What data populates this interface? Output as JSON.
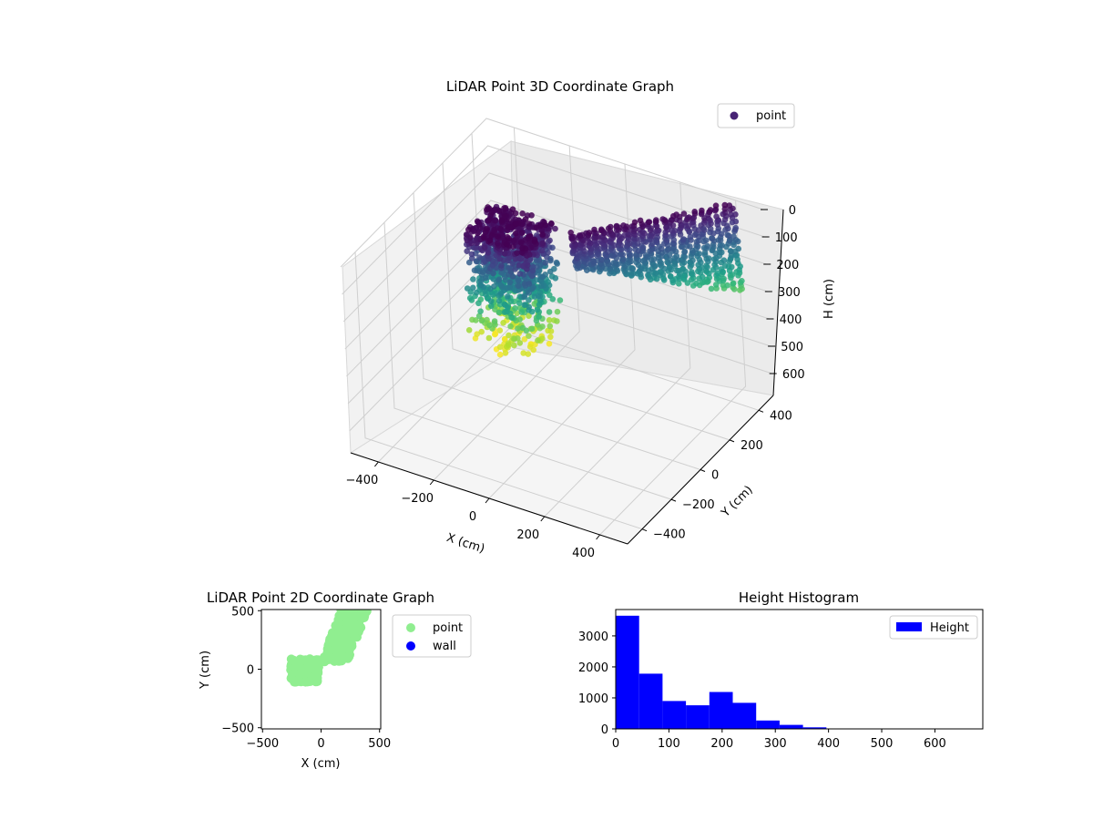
{
  "chart_data": [
    {
      "type": "scatter",
      "projection": "3d",
      "title": "LiDAR Point 3D Coordinate Graph",
      "xlabel": "X (cm)",
      "ylabel": "Y (cm)",
      "zlabel": "H (cm)",
      "xticks": [
        -400,
        -200,
        0,
        200,
        400
      ],
      "yticks": [
        -400,
        -200,
        0,
        200,
        400
      ],
      "zticks": [
        0,
        100,
        200,
        300,
        400,
        500,
        600
      ],
      "xlim": [
        -500,
        500
      ],
      "ylim": [
        -500,
        500
      ],
      "zlim": [
        0,
        680
      ],
      "z_axis_inverted": true,
      "colormap": "viridis",
      "grid": true,
      "legend": {
        "location": "upper-right",
        "entries": [
          {
            "name": "point",
            "color": "#482475"
          }
        ]
      },
      "series": [
        {
          "name": "point",
          "description_clusters": [
            {
              "x_range": [
                -260,
                -30
              ],
              "y_range": [
                -120,
                90
              ],
              "h_range": [
                0,
                420
              ]
            },
            {
              "x_range": [
                0,
                420
              ],
              "y_range": [
                60,
                500
              ],
              "h_range": [
                0,
                330
              ]
            }
          ]
        }
      ]
    },
    {
      "type": "scatter",
      "title": "LiDAR Point 2D Coordinate Graph",
      "xlabel": "X (cm)",
      "ylabel": "Y (cm)",
      "xticks": [
        -500,
        0,
        500
      ],
      "yticks": [
        -500,
        0,
        500
      ],
      "xlim": [
        -510,
        510
      ],
      "ylim": [
        -510,
        510
      ],
      "legend": {
        "location": "outside-right",
        "entries": [
          {
            "name": "point",
            "color": "#90ee90"
          },
          {
            "name": "wall",
            "color": "#0000ff"
          }
        ]
      },
      "series": [
        {
          "name": "point",
          "color": "#90ee90",
          "regions": [
            {
              "x_range": [
                -260,
                -20
              ],
              "y_range": [
                -110,
                90
              ]
            },
            {
              "x_range": [
                0,
                410
              ],
              "y_range": [
                60,
                510
              ]
            }
          ]
        },
        {
          "name": "wall",
          "color": "#0000ff",
          "points": []
        }
      ]
    },
    {
      "type": "bar",
      "title": "Height Histogram",
      "xticks": [
        0,
        100,
        200,
        300,
        400,
        500,
        600
      ],
      "yticks": [
        0,
        1000,
        2000,
        3000
      ],
      "xlim": [
        0,
        690
      ],
      "ylim": [
        0,
        3850
      ],
      "color": "#0000ff",
      "legend": {
        "location": "top-right",
        "entries": [
          {
            "name": "Height",
            "color": "#0000ff"
          }
        ]
      },
      "bin_edges": [
        0,
        44,
        88,
        132,
        176,
        220,
        264,
        308,
        352,
        396,
        440,
        484,
        528,
        572,
        616,
        660
      ],
      "values": [
        3650,
        1780,
        900,
        760,
        1190,
        840,
        270,
        130,
        50,
        10,
        5,
        3,
        2,
        1,
        1
      ]
    }
  ]
}
